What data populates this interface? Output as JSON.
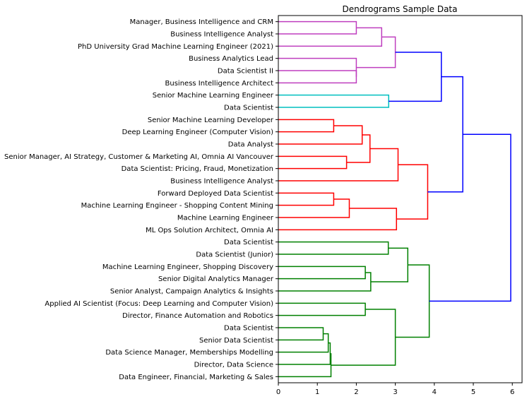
{
  "chart_data": {
    "type": "dendrogram",
    "title": "Dendrograms Sample Data",
    "orientation": "left",
    "xlim": [
      0,
      6.25
    ],
    "xticks": [
      0,
      1,
      2,
      3,
      4,
      5,
      6
    ],
    "grid": false,
    "leaves": [
      "Manager, Business Intelligence and CRM",
      "Business Intelligence Analyst",
      "PhD University Grad Machine Learning Engineer (2021)",
      "Business Analytics Lead",
      "Data Scientist II",
      "Business Intelligence Architect",
      "Senior Machine Learning Engineer",
      "Data Scientist",
      "Senior Machine Learning Developer",
      "Deep Learning Engineer (Computer Vision)",
      "Data Analyst",
      "Senior Manager, AI Strategy, Customer & Marketing AI, Omnia AI Vancouver",
      "Data Scientist: Pricing, Fraud, Monetization",
      "Business Intelligence Analyst",
      "Forward Deployed Data Scientist",
      "Machine Learning Engineer - Shopping Content Mining",
      "Machine Learning Engineer",
      "ML Ops Solution Architect, Omnia AI",
      "Data Scientist",
      "Data Scientist (Junior)",
      "Machine Learning Engineer, Shopping Discovery",
      "Senior Digital Analytics Manager",
      "Senior Analyst, Campaign Analytics & Insights",
      "Applied AI Scientist (Focus: Deep Learning and Computer Vision)",
      "Director, Finance Automation and Robotics",
      "Data Scientist",
      "Senior Data Scientist",
      "Data Science Manager, Memberships Modelling",
      "Director, Data Science",
      "Data Engineer, Financial, Marketing & Sales"
    ],
    "merges": [
      {
        "a": 0,
        "b": 1,
        "height": 2.0,
        "color": "#bf3fbf"
      },
      {
        "a": "m0",
        "b": 2,
        "height": 2.65,
        "color": "#bf3fbf"
      },
      {
        "a": 4,
        "b": 5,
        "height": 2.0,
        "color": "#bf3fbf"
      },
      {
        "a": 3,
        "b": "m2",
        "height": 2.0,
        "color": "#bf3fbf"
      },
      {
        "a": "m1",
        "b": "m3",
        "height": 3.0,
        "color": "#bf3fbf"
      },
      {
        "a": 6,
        "b": 7,
        "height": 2.83,
        "color": "#00bfbf"
      },
      {
        "a": "m4",
        "b": "m5",
        "height": 4.18,
        "color": "#0000ff"
      },
      {
        "a": 8,
        "b": 9,
        "height": 1.42,
        "color": "#ff0000"
      },
      {
        "a": "m7",
        "b": 10,
        "height": 2.15,
        "color": "#ff0000"
      },
      {
        "a": 11,
        "b": 12,
        "height": 1.75,
        "color": "#ff0000"
      },
      {
        "a": "m8",
        "b": "m9",
        "height": 2.35,
        "color": "#ff0000"
      },
      {
        "a": "m10",
        "b": 13,
        "height": 3.07,
        "color": "#ff0000"
      },
      {
        "a": 14,
        "b": 15,
        "height": 1.42,
        "color": "#ff0000"
      },
      {
        "a": "m12",
        "b": 16,
        "height": 1.82,
        "color": "#ff0000"
      },
      {
        "a": "m13",
        "b": 17,
        "height": 3.03,
        "color": "#ff0000"
      },
      {
        "a": "m11",
        "b": "m14",
        "height": 3.83,
        "color": "#ff0000"
      },
      {
        "a": "m6",
        "b": "m15",
        "height": 4.73,
        "color": "#0000ff"
      },
      {
        "a": 18,
        "b": 19,
        "height": 2.82,
        "color": "#008000"
      },
      {
        "a": 20,
        "b": 21,
        "height": 2.23,
        "color": "#008000"
      },
      {
        "a": "m18",
        "b": 22,
        "height": 2.37,
        "color": "#008000"
      },
      {
        "a": "m17",
        "b": "m19",
        "height": 3.32,
        "color": "#008000"
      },
      {
        "a": 23,
        "b": 24,
        "height": 2.23,
        "color": "#008000"
      },
      {
        "a": 25,
        "b": 26,
        "height": 1.15,
        "color": "#008000"
      },
      {
        "a": "m22",
        "b": 27,
        "height": 1.28,
        "color": "#008000"
      },
      {
        "a": "m23",
        "b": 28,
        "height": 1.33,
        "color": "#008000"
      },
      {
        "a": "m24",
        "b": 29,
        "height": 1.35,
        "color": "#008000"
      },
      {
        "a": "m21",
        "b": "m25",
        "height": 3.0,
        "color": "#008000"
      },
      {
        "a": "m20",
        "b": "m26",
        "height": 3.87,
        "color": "#008000"
      },
      {
        "a": "m16",
        "b": "m27",
        "height": 5.96,
        "color": "#0000ff"
      }
    ]
  }
}
